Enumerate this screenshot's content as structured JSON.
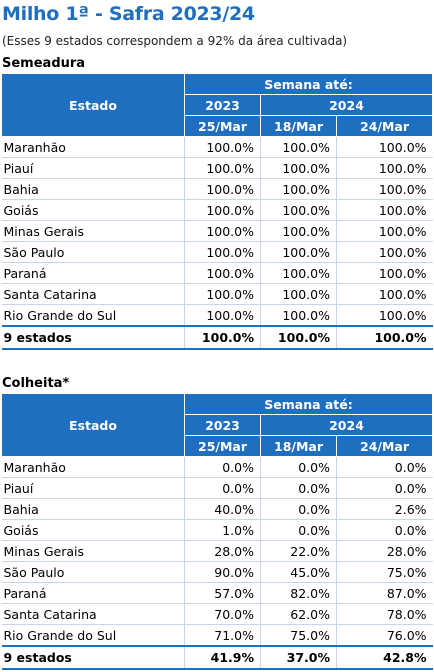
{
  "title": "Milho 1ª - Safra 2023/24",
  "subtitle": "(Esses 9 estados correspondem a 92% da área cultivada)",
  "tables": [
    {
      "section": "Semeadura",
      "header": {
        "estado": "Estado",
        "semana": "Semana até:",
        "year_2023": "2023",
        "year_2024": "2024",
        "dates": [
          "25/Mar",
          "18/Mar",
          "24/Mar"
        ]
      },
      "rows": [
        {
          "estado": "Maranhão",
          "v": [
            "100.0%",
            "100.0%",
            "100.0%"
          ]
        },
        {
          "estado": "Piauí",
          "v": [
            "100.0%",
            "100.0%",
            "100.0%"
          ]
        },
        {
          "estado": "Bahia",
          "v": [
            "100.0%",
            "100.0%",
            "100.0%"
          ]
        },
        {
          "estado": "Goiás",
          "v": [
            "100.0%",
            "100.0%",
            "100.0%"
          ]
        },
        {
          "estado": "Minas Gerais",
          "v": [
            "100.0%",
            "100.0%",
            "100.0%"
          ]
        },
        {
          "estado": "São Paulo",
          "v": [
            "100.0%",
            "100.0%",
            "100.0%"
          ]
        },
        {
          "estado": "Paraná",
          "v": [
            "100.0%",
            "100.0%",
            "100.0%"
          ]
        },
        {
          "estado": "Santa Catarina",
          "v": [
            "100.0%",
            "100.0%",
            "100.0%"
          ]
        },
        {
          "estado": "Rio Grande do Sul",
          "v": [
            "100.0%",
            "100.0%",
            "100.0%"
          ]
        }
      ],
      "total": {
        "estado": "9 estados",
        "v": [
          "100.0%",
          "100.0%",
          "100.0%"
        ]
      }
    },
    {
      "section": "Colheita*",
      "header": {
        "estado": "Estado",
        "semana": "Semana até:",
        "year_2023": "2023",
        "year_2024": "2024",
        "dates": [
          "25/Mar",
          "18/Mar",
          "24/Mar"
        ]
      },
      "rows": [
        {
          "estado": "Maranhão",
          "v": [
            "0.0%",
            "0.0%",
            "0.0%"
          ]
        },
        {
          "estado": "Piauí",
          "v": [
            "0.0%",
            "0.0%",
            "0.0%"
          ]
        },
        {
          "estado": "Bahia",
          "v": [
            "40.0%",
            "0.0%",
            "2.6%"
          ]
        },
        {
          "estado": "Goiás",
          "v": [
            "1.0%",
            "0.0%",
            "0.0%"
          ]
        },
        {
          "estado": "Minas Gerais",
          "v": [
            "28.0%",
            "22.0%",
            "28.0%"
          ]
        },
        {
          "estado": "São Paulo",
          "v": [
            "90.0%",
            "45.0%",
            "75.0%"
          ]
        },
        {
          "estado": "Paraná",
          "v": [
            "57.0%",
            "82.0%",
            "87.0%"
          ]
        },
        {
          "estado": "Santa Catarina",
          "v": [
            "70.0%",
            "62.0%",
            "78.0%"
          ]
        },
        {
          "estado": "Rio Grande do Sul",
          "v": [
            "71.0%",
            "75.0%",
            "76.0%"
          ]
        }
      ],
      "total": {
        "estado": "9 estados",
        "v": [
          "41.9%",
          "37.0%",
          "42.8%"
        ]
      }
    }
  ]
}
